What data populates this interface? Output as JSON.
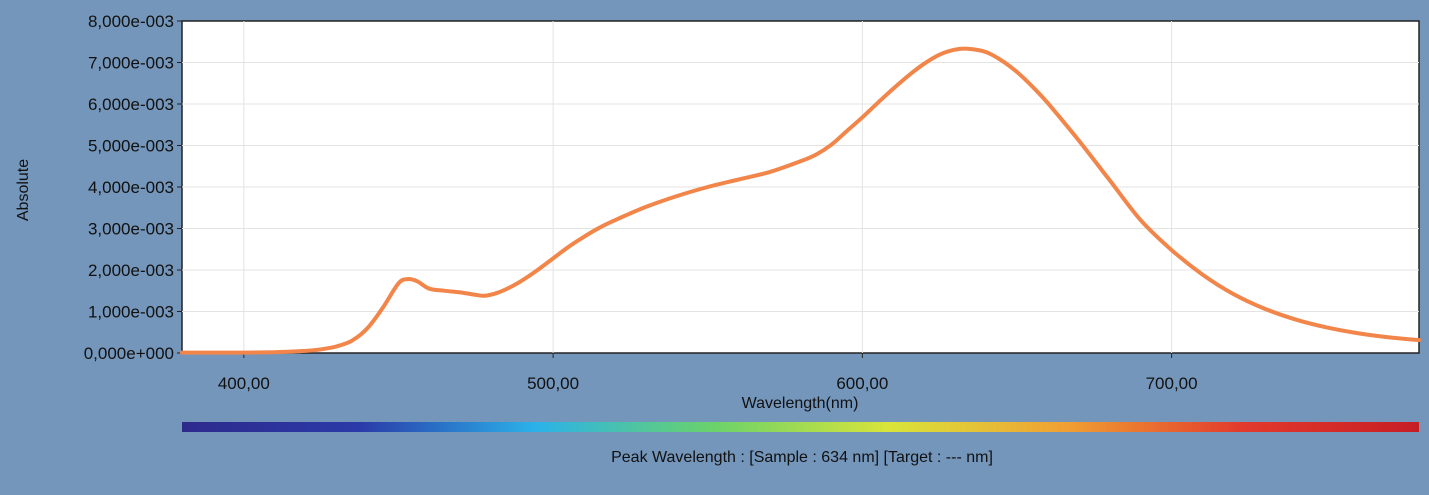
{
  "chart_data": {
    "type": "line",
    "xlabel": "Wavelength(nm)",
    "ylabel": "Absolute",
    "xlim": [
      380,
      780
    ],
    "ylim": [
      0,
      0.008
    ],
    "x_ticks": [
      400,
      500,
      600,
      700
    ],
    "x_tick_labels": [
      "400,00",
      "500,00",
      "600,00",
      "700,00"
    ],
    "y_ticks": [
      0,
      0.001,
      0.002,
      0.003,
      0.004,
      0.005,
      0.006,
      0.007,
      0.008
    ],
    "y_tick_labels": [
      "0,000e+000",
      "1,000e-003",
      "2,000e-003",
      "3,000e-003",
      "4,000e-003",
      "5,000e-003",
      "6,000e-003",
      "7,000e-003",
      "8,000e-003"
    ],
    "grid": true,
    "series": [
      {
        "color": "#f2864a",
        "x": [
          380,
          390,
          400,
          410,
          420,
          425,
          430,
          435,
          440,
          445,
          450,
          453,
          456,
          460,
          465,
          470,
          475,
          478,
          482,
          486,
          490,
          495,
          500,
          505,
          510,
          515,
          520,
          530,
          540,
          550,
          560,
          570,
          580,
          585,
          590,
          595,
          600,
          605,
          610,
          615,
          620,
          625,
          630,
          634,
          640,
          645,
          650,
          655,
          660,
          670,
          680,
          690,
          700,
          710,
          720,
          730,
          740,
          750,
          760,
          770,
          780
        ],
        "y": [
          1e-05,
          1e-05,
          1e-05,
          2e-05,
          5e-05,
          9e-05,
          0.00016,
          0.0003,
          0.0006,
          0.0011,
          0.00168,
          0.00178,
          0.00173,
          0.00155,
          0.0015,
          0.00146,
          0.0014,
          0.00138,
          0.00145,
          0.00158,
          0.00175,
          0.002,
          0.00228,
          0.00256,
          0.0028,
          0.00302,
          0.0032,
          0.00352,
          0.00378,
          0.004,
          0.00418,
          0.00436,
          0.00462,
          0.00478,
          0.00502,
          0.00535,
          0.00568,
          0.00603,
          0.00637,
          0.00669,
          0.00697,
          0.00719,
          0.00731,
          0.00733,
          0.00725,
          0.00705,
          0.00677,
          0.00642,
          0.00602,
          0.00512,
          0.00416,
          0.0032,
          0.00248,
          0.00189,
          0.00142,
          0.00107,
          0.00081,
          0.00062,
          0.00048,
          0.00038,
          0.00031
        ]
      }
    ]
  },
  "spectrum_bar": {
    "stops": [
      "#2e2a8c",
      "#2a3aa8",
      "#2bb2ea",
      "#6ad26b",
      "#d9e43a",
      "#f0a033",
      "#e23a2c",
      "#c61d25"
    ]
  },
  "peak_info": "Peak Wavelength : [Sample : 634 nm] [Target : --- nm]"
}
